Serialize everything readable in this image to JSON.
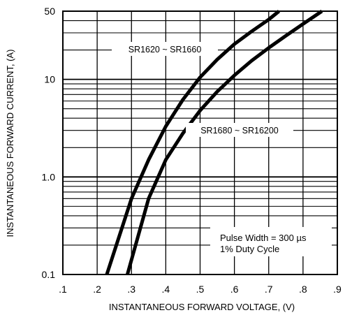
{
  "chart_data": {
    "type": "line",
    "xlabel": "INSTANTANEOUS FORWARD VOLTAGE, (V)",
    "ylabel": "INSTANTANEOUS FORWARD CURRENT, (A)",
    "x_scale": "linear",
    "y_scale": "log",
    "xlim": [
      0.1,
      0.9
    ],
    "ylim": [
      0.1,
      50
    ],
    "x_tick_values": [
      0.1,
      0.2,
      0.3,
      0.4,
      0.5,
      0.6,
      0.7,
      0.8,
      0.9
    ],
    "x_tick_labels": [
      ".1",
      ".2",
      ".3",
      ".4",
      ".5",
      ".6",
      ".7",
      ".8",
      ".9"
    ],
    "y_tick_values": [
      0.1,
      1.0,
      10,
      50
    ],
    "y_tick_labels": [
      "0.1",
      "1.0",
      "10",
      "50"
    ],
    "grid": true,
    "series": [
      {
        "name": "SR1620 ~ SR1660",
        "points": [
          [
            0.228,
            0.1
          ],
          [
            0.3,
            0.6
          ],
          [
            0.35,
            1.5
          ],
          [
            0.4,
            3.3
          ],
          [
            0.45,
            6.2
          ],
          [
            0.5,
            10.5
          ],
          [
            0.55,
            16
          ],
          [
            0.6,
            23
          ],
          [
            0.65,
            31
          ],
          [
            0.7,
            41
          ],
          [
            0.73,
            50
          ]
        ]
      },
      {
        "name": "SR1680 ~ SR16200",
        "points": [
          [
            0.288,
            0.1
          ],
          [
            0.35,
            0.6
          ],
          [
            0.4,
            1.5
          ],
          [
            0.45,
            2.8
          ],
          [
            0.5,
            4.8
          ],
          [
            0.55,
            7.5
          ],
          [
            0.6,
            11
          ],
          [
            0.65,
            15.5
          ],
          [
            0.7,
            21
          ],
          [
            0.75,
            28
          ],
          [
            0.8,
            37
          ],
          [
            0.855,
            50
          ]
        ]
      }
    ],
    "annotations": [
      "Pulse Width = 300 µs",
      "1% Duty Cycle"
    ]
  },
  "colors": {
    "line": "#000000",
    "grid": "#000000",
    "background": "#ffffff"
  }
}
